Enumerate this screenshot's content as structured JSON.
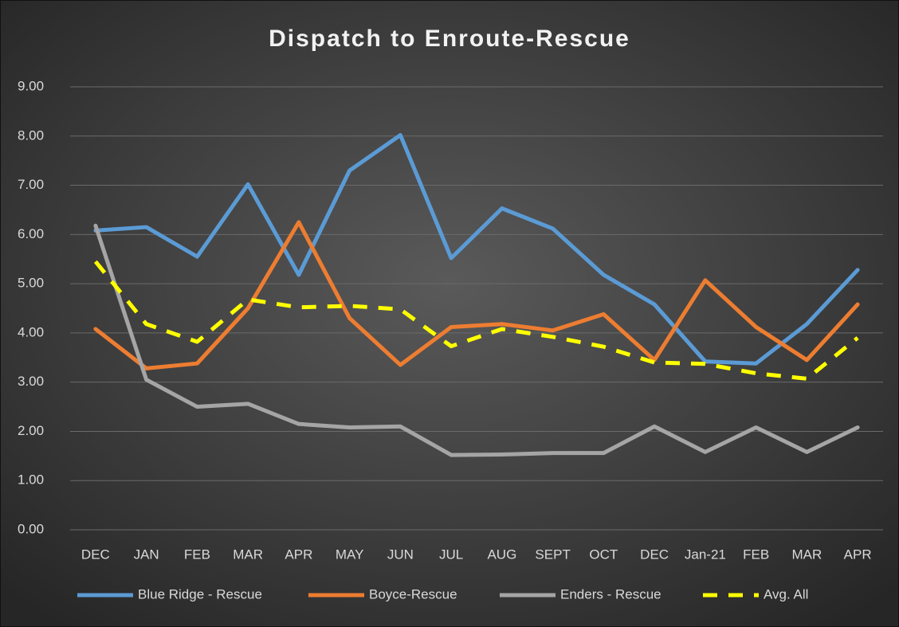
{
  "chart_data": {
    "type": "line",
    "title": "Dispatch to Enroute-Rescue",
    "categories": [
      "DEC",
      "JAN",
      "FEB",
      "MAR",
      "APR",
      "MAY",
      "JUN",
      "JUL",
      "AUG",
      "SEPT",
      "OCT",
      "DEC",
      "Jan-21",
      "FEB",
      "MAR",
      "APR"
    ],
    "series": [
      {
        "name": "Blue Ridge - Rescue",
        "color": "#5b9bd5",
        "dashed": false,
        "values": [
          6.08,
          6.15,
          5.55,
          7.02,
          5.18,
          7.3,
          8.02,
          5.52,
          6.53,
          6.12,
          5.18,
          4.58,
          3.42,
          3.38,
          4.18,
          5.28
        ]
      },
      {
        "name": "Boyce-Rescue",
        "color": "#ed7d31",
        "dashed": false,
        "values": [
          4.08,
          3.28,
          3.38,
          4.5,
          6.25,
          4.3,
          3.35,
          4.12,
          4.18,
          4.05,
          4.38,
          3.45,
          5.07,
          4.12,
          3.45,
          4.58
        ]
      },
      {
        "name": "Enders - Rescue",
        "color": "#a5a5a5",
        "dashed": false,
        "values": [
          6.18,
          3.05,
          2.5,
          2.56,
          2.15,
          2.08,
          2.1,
          1.52,
          1.53,
          1.56,
          1.56,
          2.1,
          1.58,
          2.08,
          1.58,
          2.08
        ]
      },
      {
        "name": "Avg. All",
        "color": "#ffff00",
        "dashed": true,
        "values": [
          5.45,
          4.18,
          3.82,
          4.68,
          4.52,
          4.55,
          4.48,
          3.73,
          4.08,
          3.92,
          3.72,
          3.4,
          3.37,
          3.18,
          3.07,
          3.9
        ]
      }
    ],
    "ylim": [
      0,
      9
    ],
    "yticks": [
      {
        "value": 0,
        "label": "0.00"
      },
      {
        "value": 1,
        "label": "1.00"
      },
      {
        "value": 2,
        "label": "2.00"
      },
      {
        "value": 3,
        "label": "3.00"
      },
      {
        "value": 4,
        "label": "4.00"
      },
      {
        "value": 5,
        "label": "5.00"
      },
      {
        "value": 6,
        "label": "6.00"
      },
      {
        "value": 7,
        "label": "7.00"
      },
      {
        "value": 8,
        "label": "8.00"
      },
      {
        "value": 9,
        "label": "9.00"
      }
    ],
    "grid": true,
    "legend": "bottom"
  }
}
